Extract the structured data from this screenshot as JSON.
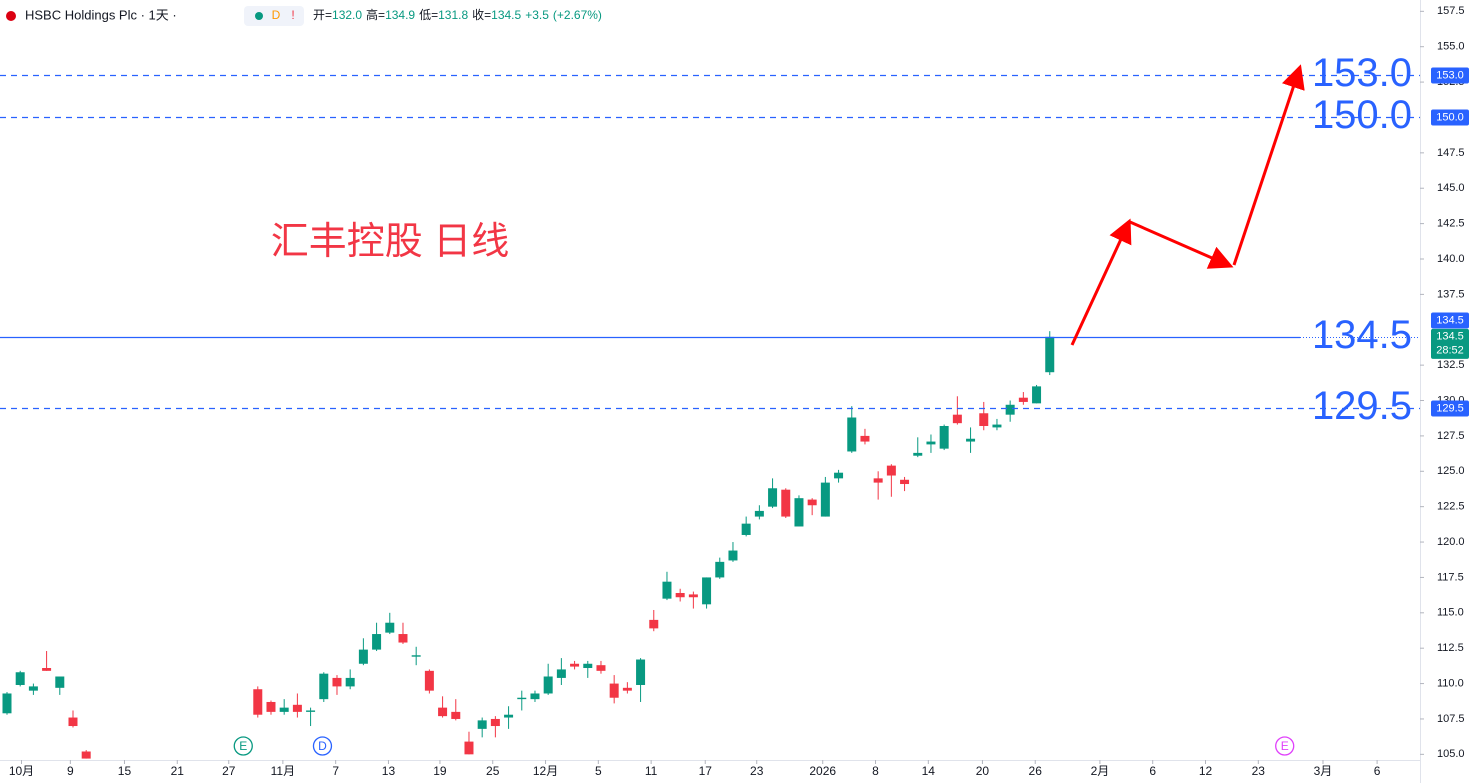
{
  "header": {
    "title": "HSBC Holdings Plc · 1天 ·",
    "badge_d": "D",
    "badge_alert": "!",
    "open_label": "开=",
    "open": "132.0",
    "high_label": "高=",
    "high": "134.9",
    "low_label": "低=",
    "low": "131.8",
    "close_label": "收=",
    "close": "134.5",
    "change": "+3.5",
    "change_pct": "(+2.67%)"
  },
  "chart_data": {
    "type": "candlestick",
    "annotation": "汇丰控股 日线",
    "up_color": "#089981",
    "down_color": "#f23645",
    "x": [
      0,
      1,
      2,
      3,
      4,
      5,
      6,
      19,
      20,
      21,
      22,
      23,
      24,
      25,
      26,
      27,
      28,
      29,
      30,
      31,
      32,
      33,
      34,
      35,
      36,
      37,
      38,
      39,
      40,
      41,
      42,
      43,
      44,
      45,
      46,
      47,
      48,
      49,
      50,
      51,
      52,
      53,
      54,
      55,
      56,
      57,
      58,
      59,
      60,
      61,
      62,
      63,
      64,
      65,
      66,
      67,
      68,
      69,
      70,
      71,
      72,
      73,
      74,
      75,
      76,
      77,
      78,
      79
    ],
    "open": [
      107.9,
      109.9,
      109.5,
      111.1,
      109.7,
      107.6,
      105.2,
      109.6,
      108.7,
      108.0,
      108.5,
      108.0,
      108.9,
      110.4,
      109.8,
      111.4,
      112.4,
      113.6,
      113.5,
      111.9,
      110.9,
      108.3,
      108.0,
      105.9,
      106.8,
      107.5,
      107.6,
      108.9,
      108.9,
      109.3,
      110.4,
      111.4,
      111.1,
      111.3,
      110.0,
      109.7,
      109.9,
      114.5,
      116.0,
      116.4,
      116.3,
      115.6,
      117.5,
      118.7,
      120.5,
      121.8,
      122.5,
      123.7,
      121.1,
      123.0,
      121.8,
      124.5,
      126.4,
      127.5,
      124.5,
      125.4,
      124.4,
      126.1,
      126.9,
      126.6,
      129.0,
      127.1,
      129.1,
      128.1,
      129.0,
      130.2,
      129.8,
      132.0
    ],
    "high": [
      109.4,
      110.9,
      110.0,
      112.3,
      110.5,
      108.1,
      105.3,
      109.8,
      108.8,
      108.9,
      109.3,
      108.3,
      110.8,
      110.6,
      111.0,
      113.2,
      114.3,
      115.0,
      114.3,
      112.6,
      111.0,
      109.1,
      108.9,
      106.6,
      107.6,
      107.7,
      108.4,
      109.5,
      109.5,
      111.4,
      111.8,
      111.6,
      111.6,
      111.6,
      110.6,
      110.1,
      111.8,
      115.2,
      117.9,
      116.7,
      116.5,
      117.5,
      118.9,
      120.0,
      121.8,
      122.6,
      124.5,
      123.8,
      123.3,
      123.1,
      124.6,
      125.1,
      129.6,
      128.0,
      125.0,
      125.5,
      124.6,
      127.4,
      127.6,
      128.3,
      130.3,
      128.1,
      129.9,
      128.7,
      130.0,
      130.6,
      131.1,
      134.9
    ],
    "low": [
      107.8,
      109.8,
      109.2,
      110.9,
      109.2,
      106.9,
      104.7,
      107.6,
      107.8,
      107.8,
      107.6,
      107.0,
      108.7,
      109.2,
      109.6,
      111.3,
      112.3,
      113.5,
      112.8,
      111.3,
      109.3,
      107.6,
      107.4,
      105.0,
      106.2,
      106.2,
      106.8,
      108.1,
      108.7,
      109.2,
      109.9,
      111.0,
      110.4,
      110.7,
      108.6,
      109.3,
      108.7,
      113.7,
      115.9,
      115.8,
      115.3,
      115.3,
      117.4,
      118.6,
      120.4,
      121.6,
      122.4,
      121.7,
      121.1,
      121.9,
      121.8,
      124.2,
      126.3,
      126.9,
      123.0,
      123.2,
      123.6,
      126.0,
      126.3,
      126.5,
      128.3,
      126.3,
      127.9,
      127.9,
      128.5,
      129.7,
      129.8,
      131.8
    ],
    "close": [
      109.3,
      110.8,
      109.8,
      110.9,
      110.5,
      107.0,
      104.7,
      107.8,
      108.0,
      108.3,
      108.0,
      108.1,
      110.7,
      109.8,
      110.4,
      112.4,
      113.5,
      114.3,
      112.9,
      112.0,
      109.5,
      107.7,
      107.5,
      105.0,
      107.4,
      107.0,
      107.8,
      109.0,
      109.3,
      110.5,
      111.0,
      111.2,
      111.4,
      110.9,
      109.0,
      109.5,
      111.7,
      113.9,
      117.2,
      116.1,
      116.1,
      117.5,
      118.6,
      119.4,
      121.3,
      122.2,
      123.8,
      121.8,
      123.1,
      122.6,
      124.2,
      124.9,
      128.8,
      127.1,
      124.2,
      124.7,
      124.1,
      126.3,
      127.1,
      128.2,
      128.4,
      127.3,
      128.2,
      128.3,
      129.7,
      129.9,
      131.0,
      134.5
    ],
    "xlim": [
      -0.53,
      107.05
    ],
    "ylim": [
      104.6,
      158.3
    ],
    "xticks": [
      {
        "value": 1.1,
        "label": "10月"
      },
      {
        "value": 4.8,
        "label": "9"
      },
      {
        "value": 8.9,
        "label": "15"
      },
      {
        "value": 12.9,
        "label": "21"
      },
      {
        "value": 16.8,
        "label": "27"
      },
      {
        "value": 20.9,
        "label": "11月"
      },
      {
        "value": 24.9,
        "label": "7"
      },
      {
        "value": 28.9,
        "label": "13"
      },
      {
        "value": 32.8,
        "label": "19"
      },
      {
        "value": 36.8,
        "label": "25"
      },
      {
        "value": 40.8,
        "label": "12月"
      },
      {
        "value": 44.8,
        "label": "5"
      },
      {
        "value": 48.8,
        "label": "11"
      },
      {
        "value": 52.9,
        "label": "17"
      },
      {
        "value": 56.8,
        "label": "23"
      },
      {
        "value": 61.8,
        "label": "2026"
      },
      {
        "value": 65.8,
        "label": "8"
      },
      {
        "value": 69.8,
        "label": "14"
      },
      {
        "value": 73.9,
        "label": "20"
      },
      {
        "value": 77.9,
        "label": "26"
      },
      {
        "value": 82.8,
        "label": "2月"
      },
      {
        "value": 86.8,
        "label": "6"
      },
      {
        "value": 90.8,
        "label": "12"
      },
      {
        "value": 94.8,
        "label": "23"
      },
      {
        "value": 99.7,
        "label": "3月"
      },
      {
        "value": 103.8,
        "label": "6"
      }
    ],
    "yticks": [
      {
        "value": 157.5,
        "label": "157.5"
      },
      {
        "value": 155,
        "label": "155.0"
      },
      {
        "value": 152.5,
        "label": "152.5"
      },
      {
        "value": 147.5,
        "label": "147.5"
      },
      {
        "value": 145,
        "label": "145.0"
      },
      {
        "value": 142.5,
        "label": "142.5"
      },
      {
        "value": 140,
        "label": "140.0"
      },
      {
        "value": 137.5,
        "label": "137.5"
      },
      {
        "value": 132.5,
        "label": "132.5"
      },
      {
        "value": 130,
        "label": "130.0"
      },
      {
        "value": 127.5,
        "label": "127.5"
      },
      {
        "value": 125,
        "label": "125.0"
      },
      {
        "value": 122.5,
        "label": "122.5"
      },
      {
        "value": 120,
        "label": "120.0"
      },
      {
        "value": 117.5,
        "label": "117.5"
      },
      {
        "value": 115,
        "label": "115.0"
      },
      {
        "value": 112.5,
        "label": "112.5"
      },
      {
        "value": 110,
        "label": "110.0"
      },
      {
        "value": 107.5,
        "label": "107.5"
      },
      {
        "value": 105,
        "label": "105.0"
      }
    ],
    "hlines": [
      {
        "value": 153.0,
        "label": "153.0",
        "style": "dashed"
      },
      {
        "value": 150.0,
        "label": "150.0",
        "style": "dashed"
      },
      {
        "value": 134.5,
        "label": "134.5",
        "style": "solid"
      },
      {
        "value": 129.5,
        "label": "129.5",
        "style": "dashed"
      }
    ],
    "hline_color": "#2962ff",
    "last_price": {
      "label": "134.5",
      "countdown": "28:52"
    },
    "events": [
      {
        "label": "E",
        "x": 17.9,
        "color": "#089981"
      },
      {
        "label": "D",
        "x": 23.9,
        "color": "#2962ff"
      },
      {
        "label": "E",
        "x": 96.8,
        "color": "#e040fb"
      }
    ]
  }
}
